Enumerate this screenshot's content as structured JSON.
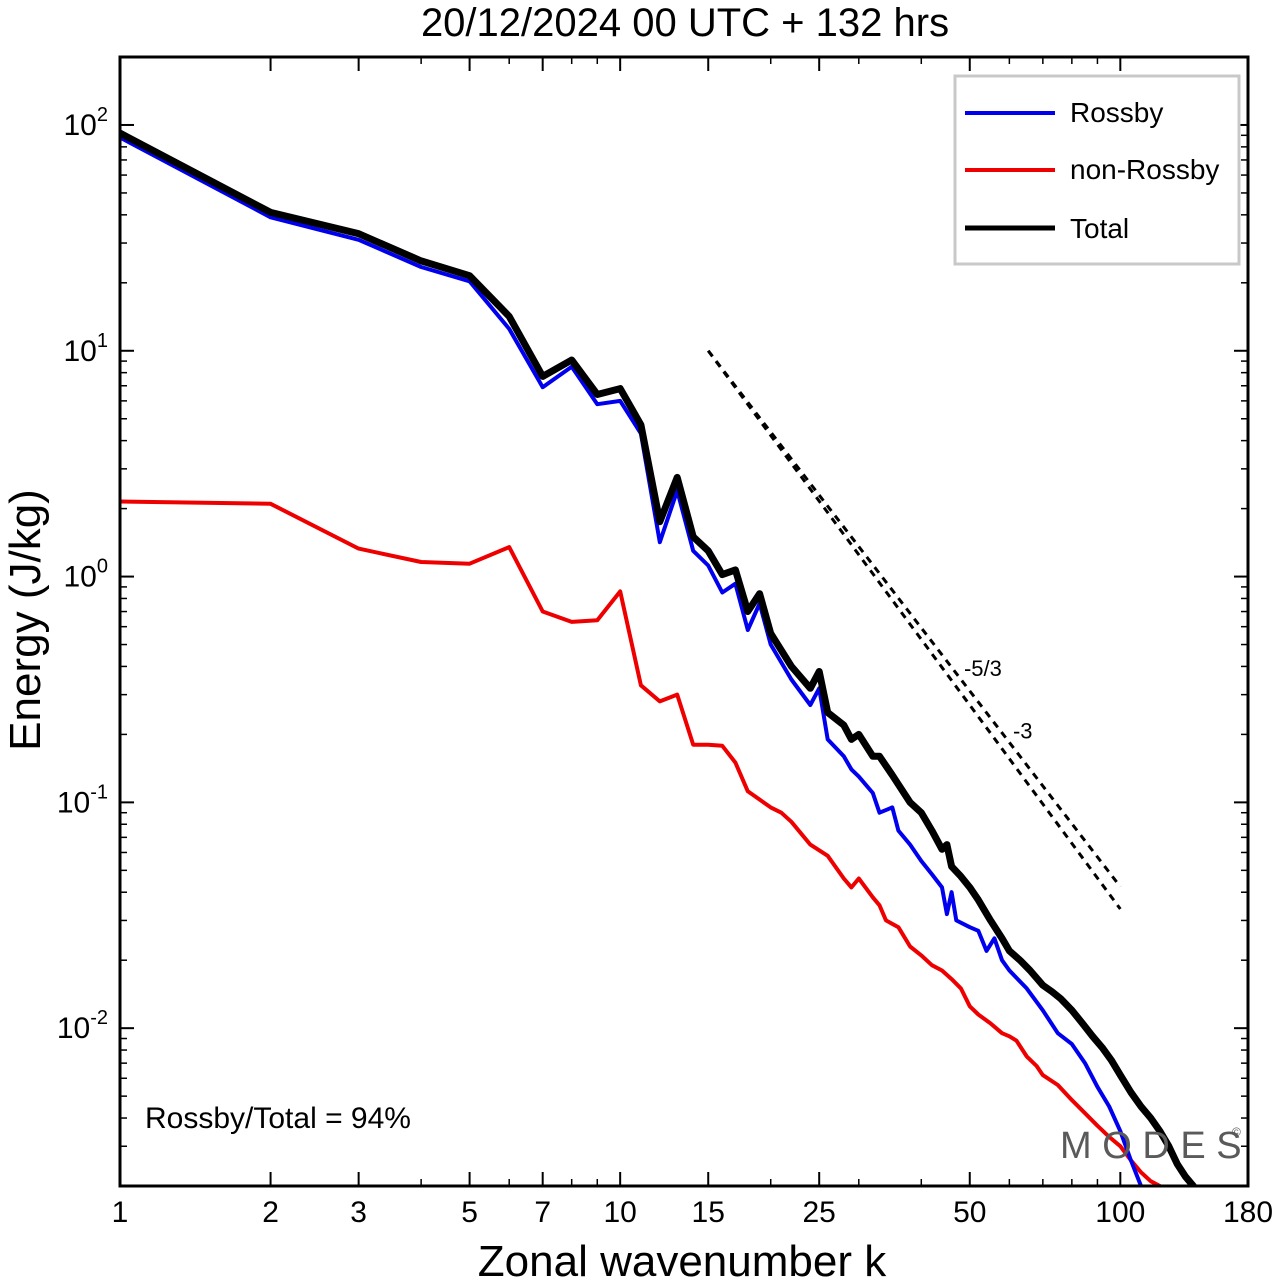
{
  "chart_data": {
    "type": "line",
    "title": "20/12/2024  00 UTC  + 132 hrs",
    "xlabel": "Zonal wavenumber k",
    "ylabel": "Energy (J/kg)",
    "x_scale": "log",
    "y_scale": "log",
    "xlim": [
      1,
      180
    ],
    "ylim": [
      0.002,
      200
    ],
    "x_ticks": [
      1,
      2,
      3,
      5,
      7,
      10,
      15,
      25,
      50,
      100,
      180
    ],
    "x_tick_labels": [
      "1",
      "2",
      "3",
      "5",
      "7",
      "10",
      "15",
      "25",
      "50",
      "100",
      "180"
    ],
    "y_ticks": [
      {
        "value": 100,
        "base": "10",
        "exp": "2"
      },
      {
        "value": 10,
        "base": "10",
        "exp": "1"
      },
      {
        "value": 1,
        "base": "10",
        "exp": "0"
      },
      {
        "value": 0.1,
        "base": "10",
        "exp": "-1"
      },
      {
        "value": 0.01,
        "base": "10",
        "exp": "-2"
      }
    ],
    "legend_position": "top-right",
    "series": [
      {
        "name": "Rossby",
        "color": "#0000ee",
        "points": [
          [
            1,
            88
          ],
          [
            2,
            39
          ],
          [
            3,
            31
          ],
          [
            4,
            23.5
          ],
          [
            5,
            20.3
          ],
          [
            6,
            12.5
          ],
          [
            7,
            6.9
          ],
          [
            8,
            8.5
          ],
          [
            9,
            5.8
          ],
          [
            10,
            6.0
          ],
          [
            11,
            4.3
          ],
          [
            12,
            1.42
          ],
          [
            13,
            2.4
          ],
          [
            14,
            1.3
          ],
          [
            15,
            1.12
          ],
          [
            16,
            0.85
          ],
          [
            17,
            0.93
          ],
          [
            18,
            0.58
          ],
          [
            19,
            0.76
          ],
          [
            20,
            0.5
          ],
          [
            22,
            0.35
          ],
          [
            24,
            0.27
          ],
          [
            25,
            0.32
          ],
          [
            26,
            0.19
          ],
          [
            28,
            0.16
          ],
          [
            29,
            0.14
          ],
          [
            30,
            0.13
          ],
          [
            32,
            0.11
          ],
          [
            33,
            0.09
          ],
          [
            35,
            0.095
          ],
          [
            36,
            0.075
          ],
          [
            38,
            0.065
          ],
          [
            40,
            0.055
          ],
          [
            42,
            0.048
          ],
          [
            44,
            0.042
          ],
          [
            45,
            0.032
          ],
          [
            46,
            0.04
          ],
          [
            47,
            0.03
          ],
          [
            50,
            0.028
          ],
          [
            52,
            0.027
          ],
          [
            54,
            0.022
          ],
          [
            56,
            0.025
          ],
          [
            58,
            0.02
          ],
          [
            60,
            0.018
          ],
          [
            65,
            0.015
          ],
          [
            70,
            0.012
          ],
          [
            75,
            0.0095
          ],
          [
            80,
            0.0085
          ],
          [
            85,
            0.007
          ],
          [
            90,
            0.0055
          ],
          [
            95,
            0.0045
          ],
          [
            100,
            0.0035
          ],
          [
            105,
            0.0026
          ],
          [
            110,
            0.002
          ]
        ]
      },
      {
        "name": "non-Rossby",
        "color": "#ee0000",
        "points": [
          [
            1,
            2.15
          ],
          [
            2,
            2.1
          ],
          [
            3,
            1.33
          ],
          [
            4,
            1.16
          ],
          [
            5,
            1.14
          ],
          [
            6,
            1.35
          ],
          [
            7,
            0.7
          ],
          [
            8,
            0.63
          ],
          [
            9,
            0.64
          ],
          [
            10,
            0.86
          ],
          [
            11,
            0.33
          ],
          [
            12,
            0.28
          ],
          [
            13,
            0.3
          ],
          [
            14,
            0.18
          ],
          [
            15,
            0.18
          ],
          [
            16,
            0.178
          ],
          [
            17,
            0.15
          ],
          [
            18,
            0.112
          ],
          [
            20,
            0.095
          ],
          [
            21,
            0.09
          ],
          [
            22,
            0.082
          ],
          [
            24,
            0.065
          ],
          [
            26,
            0.058
          ],
          [
            28,
            0.046
          ],
          [
            29,
            0.042
          ],
          [
            30,
            0.046
          ],
          [
            32,
            0.038
          ],
          [
            33,
            0.035
          ],
          [
            34,
            0.03
          ],
          [
            36,
            0.028
          ],
          [
            38,
            0.023
          ],
          [
            40,
            0.021
          ],
          [
            42,
            0.019
          ],
          [
            44,
            0.018
          ],
          [
            46,
            0.0165
          ],
          [
            48,
            0.015
          ],
          [
            50,
            0.0125
          ],
          [
            52,
            0.0115
          ],
          [
            55,
            0.0105
          ],
          [
            58,
            0.0095
          ],
          [
            60,
            0.0092
          ],
          [
            62,
            0.0088
          ],
          [
            65,
            0.0075
          ],
          [
            68,
            0.0068
          ],
          [
            70,
            0.0062
          ],
          [
            75,
            0.0056
          ],
          [
            80,
            0.0048
          ],
          [
            85,
            0.0042
          ],
          [
            90,
            0.0037
          ],
          [
            95,
            0.0033
          ],
          [
            100,
            0.003
          ],
          [
            105,
            0.0026
          ],
          [
            110,
            0.0023
          ],
          [
            115,
            0.0021
          ],
          [
            120,
            0.002
          ]
        ]
      },
      {
        "name": "Total",
        "color": "#000000",
        "points": [
          [
            1,
            92
          ],
          [
            2,
            41
          ],
          [
            3,
            33
          ],
          [
            4,
            25
          ],
          [
            5,
            21.5
          ],
          [
            6,
            14.2
          ],
          [
            7,
            7.7
          ],
          [
            8,
            9.1
          ],
          [
            9,
            6.4
          ],
          [
            10,
            6.8
          ],
          [
            11,
            4.7
          ],
          [
            12,
            1.75
          ],
          [
            13,
            2.75
          ],
          [
            14,
            1.5
          ],
          [
            15,
            1.3
          ],
          [
            16,
            1.02
          ],
          [
            17,
            1.07
          ],
          [
            18,
            0.7
          ],
          [
            19,
            0.84
          ],
          [
            20,
            0.56
          ],
          [
            22,
            0.4
          ],
          [
            24,
            0.32
          ],
          [
            25,
            0.38
          ],
          [
            26,
            0.25
          ],
          [
            28,
            0.22
          ],
          [
            29,
            0.19
          ],
          [
            30,
            0.2
          ],
          [
            32,
            0.16
          ],
          [
            33,
            0.16
          ],
          [
            35,
            0.132
          ],
          [
            36,
            0.12
          ],
          [
            38,
            0.1
          ],
          [
            40,
            0.09
          ],
          [
            42,
            0.075
          ],
          [
            44,
            0.062
          ],
          [
            45,
            0.065
          ],
          [
            46,
            0.052
          ],
          [
            48,
            0.047
          ],
          [
            50,
            0.042
          ],
          [
            52,
            0.037
          ],
          [
            55,
            0.03
          ],
          [
            58,
            0.025
          ],
          [
            60,
            0.022
          ],
          [
            63,
            0.02
          ],
          [
            66,
            0.018
          ],
          [
            70,
            0.0155
          ],
          [
            73,
            0.0145
          ],
          [
            76,
            0.0135
          ],
          [
            80,
            0.012
          ],
          [
            84,
            0.0105
          ],
          [
            88,
            0.0092
          ],
          [
            92,
            0.0082
          ],
          [
            96,
            0.0072
          ],
          [
            100,
            0.0062
          ],
          [
            105,
            0.0052
          ],
          [
            110,
            0.0045
          ],
          [
            115,
            0.004
          ],
          [
            120,
            0.0035
          ],
          [
            125,
            0.003
          ],
          [
            130,
            0.0025
          ],
          [
            135,
            0.0022
          ],
          [
            140,
            0.002
          ]
        ]
      }
    ],
    "reference_lines": [
      {
        "label": "-5/3",
        "x_start": 15,
        "x_end": 100,
        "y_start": 10,
        "y_end": 0.0423
      },
      {
        "label": "-3",
        "x_start": 15,
        "x_end": 100,
        "y_start": 10,
        "y_end": 0.0337
      }
    ],
    "annotations": {
      "ratio_text": "Rossby/Total = 94%",
      "watermark": "M O D E S",
      "watermark_mark": "©"
    }
  }
}
